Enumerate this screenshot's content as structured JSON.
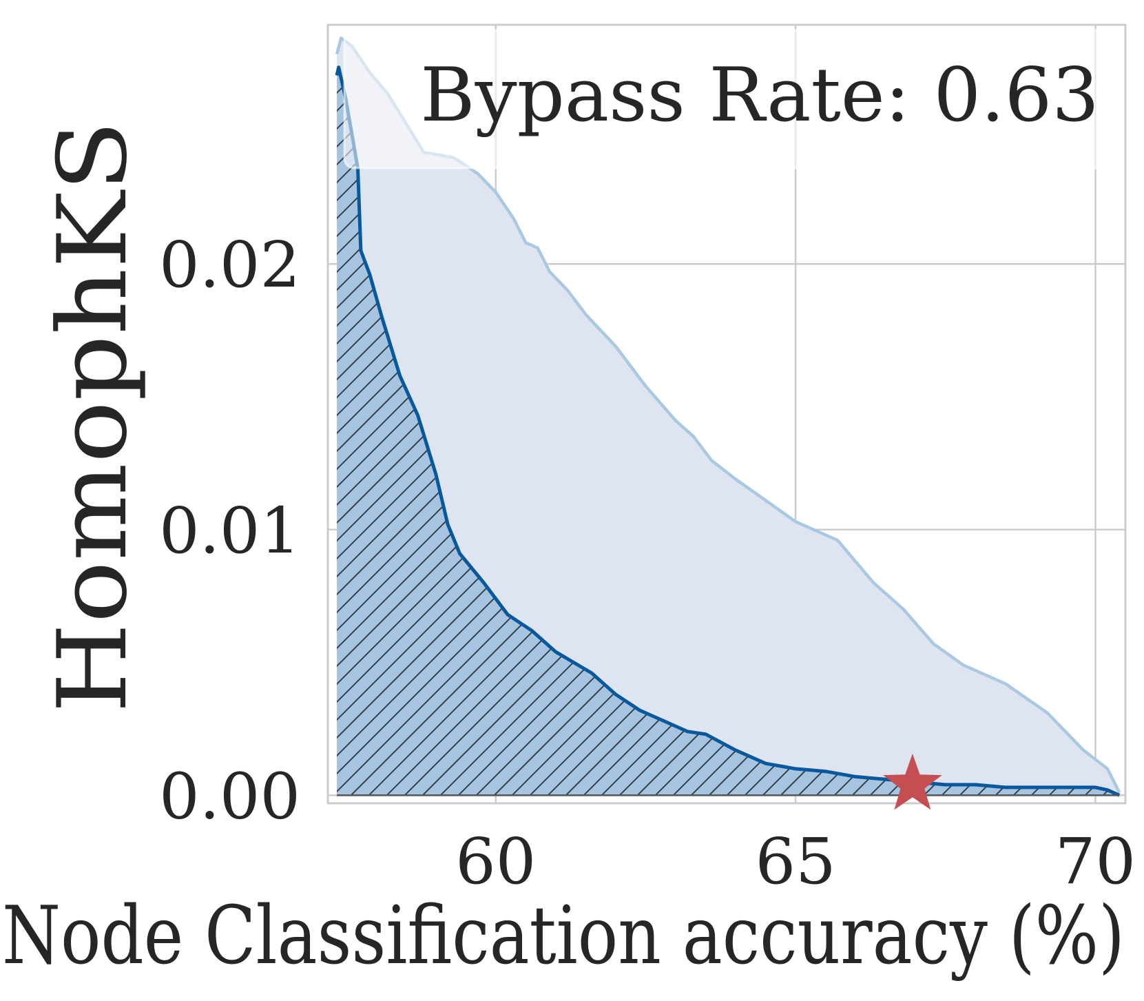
{
  "chart_data": {
    "type": "area",
    "title": "",
    "annotation": "Bypass Rate: 0.63",
    "xlabel": "Node Classification accuracy (%)",
    "ylabel": "HomophKS",
    "xlim": [
      57.2,
      70.5
    ],
    "ylim": [
      -0.0003,
      0.029
    ],
    "xticks": [
      60,
      65,
      70
    ],
    "xtick_labels": [
      "60",
      "65",
      "70"
    ],
    "yticks": [
      0.0,
      0.01,
      0.02
    ],
    "ytick_labels": [
      "0.00",
      "0.01",
      "0.02"
    ],
    "grid": true,
    "legend": "none",
    "colors": {
      "lower_line": "#08589e",
      "lower_fill": "#a6c4df",
      "hatch": "#333f4a",
      "upper_line": "#a9c8e3",
      "upper_fill": "#dfe5f0",
      "star": "#c44e52",
      "grid": "#cccccc",
      "axes": "#cccccc"
    },
    "series": [
      {
        "role": "upper-envelope",
        "x": [
          57.35,
          57.42,
          57.6,
          57.9,
          58.2,
          58.5,
          58.8,
          59.3,
          59.7,
          60.0,
          60.3,
          60.5,
          60.7,
          60.9,
          61.2,
          61.5,
          62.0,
          62.5,
          63.0,
          63.3,
          63.6,
          64.0,
          64.5,
          65.0,
          65.7,
          66.3,
          66.8,
          67.3,
          67.8,
          68.5,
          69.2,
          69.8,
          70.2,
          70.4
        ],
        "y": [
          0.0279,
          0.0285,
          0.0282,
          0.0272,
          0.0264,
          0.0253,
          0.0242,
          0.024,
          0.0234,
          0.0227,
          0.0217,
          0.0208,
          0.0206,
          0.0197,
          0.019,
          0.0181,
          0.0169,
          0.0154,
          0.0141,
          0.0135,
          0.0126,
          0.0119,
          0.0111,
          0.0103,
          0.0096,
          0.008,
          0.007,
          0.0057,
          0.0049,
          0.0042,
          0.0031,
          0.0017,
          0.001,
          0.0001
        ]
      },
      {
        "role": "lower-frontier",
        "x": [
          57.35,
          57.38,
          57.5,
          57.7,
          57.75,
          57.9,
          58.1,
          58.4,
          58.7,
          59.0,
          59.2,
          59.4,
          59.8,
          60.2,
          60.6,
          61.0,
          61.3,
          61.6,
          62.0,
          62.4,
          62.8,
          63.2,
          63.5,
          64.0,
          64.5,
          65.0,
          65.5,
          66.0,
          66.5,
          67.0,
          67.5,
          68.0,
          68.5,
          69.0,
          69.5,
          70.0,
          70.2,
          70.4
        ],
        "y": [
          0.0271,
          0.0274,
          0.0262,
          0.0236,
          0.0205,
          0.0196,
          0.018,
          0.0158,
          0.0143,
          0.0121,
          0.0102,
          0.0091,
          0.008,
          0.0068,
          0.0062,
          0.0054,
          0.005,
          0.0046,
          0.0038,
          0.0032,
          0.0028,
          0.0024,
          0.0023,
          0.0017,
          0.0012,
          0.001,
          0.0009,
          0.0007,
          0.0006,
          0.0005,
          0.0004,
          0.0004,
          0.0003,
          0.0003,
          0.0003,
          0.0003,
          0.0002,
          0.0
        ]
      }
    ],
    "marker": {
      "shape": "star",
      "x": 66.95,
      "y": 0.0004
    }
  }
}
